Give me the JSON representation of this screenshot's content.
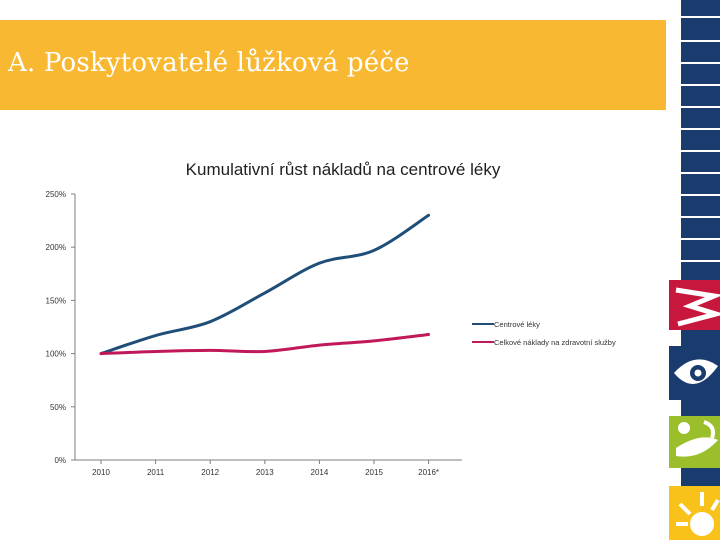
{
  "slide": {
    "title": "A.  Poskytovatelé lůžková péče"
  },
  "colors": {
    "header_bg": "#f9b832",
    "series_1": "#1f4e79",
    "series_2": "#c0185a",
    "deco_navy": "#1a3b6e",
    "deco_red": "#c8173d",
    "deco_green": "#9bbf2a",
    "deco_yellow": "#f9c21b"
  },
  "decor_icons": [
    "sun-logo-icon",
    "leaf-logo-icon",
    "eye-logo-icon",
    "flame-logo-icon"
  ],
  "chart_data": {
    "type": "line",
    "title": "Kumulativní růst nákladů na centrové léky",
    "xlabel": "",
    "ylabel": "",
    "categories": [
      "2010",
      "2011",
      "2012",
      "2013",
      "2014",
      "2015",
      "2016*"
    ],
    "y_ticks": [
      "250%",
      "200%",
      "150%",
      "100%",
      "50%",
      "0%"
    ],
    "y_tick_values": [
      250,
      200,
      150,
      100,
      50,
      0
    ],
    "ylim": [
      0,
      250
    ],
    "grid": false,
    "legend_position": "right",
    "series": [
      {
        "name": "Centrové léky",
        "values": [
          100,
          117,
          130,
          157,
          185,
          197,
          230
        ]
      },
      {
        "name": "Celkové náklady na zdravotní služby",
        "values": [
          100,
          102,
          103,
          102,
          108,
          112,
          118
        ]
      }
    ]
  }
}
